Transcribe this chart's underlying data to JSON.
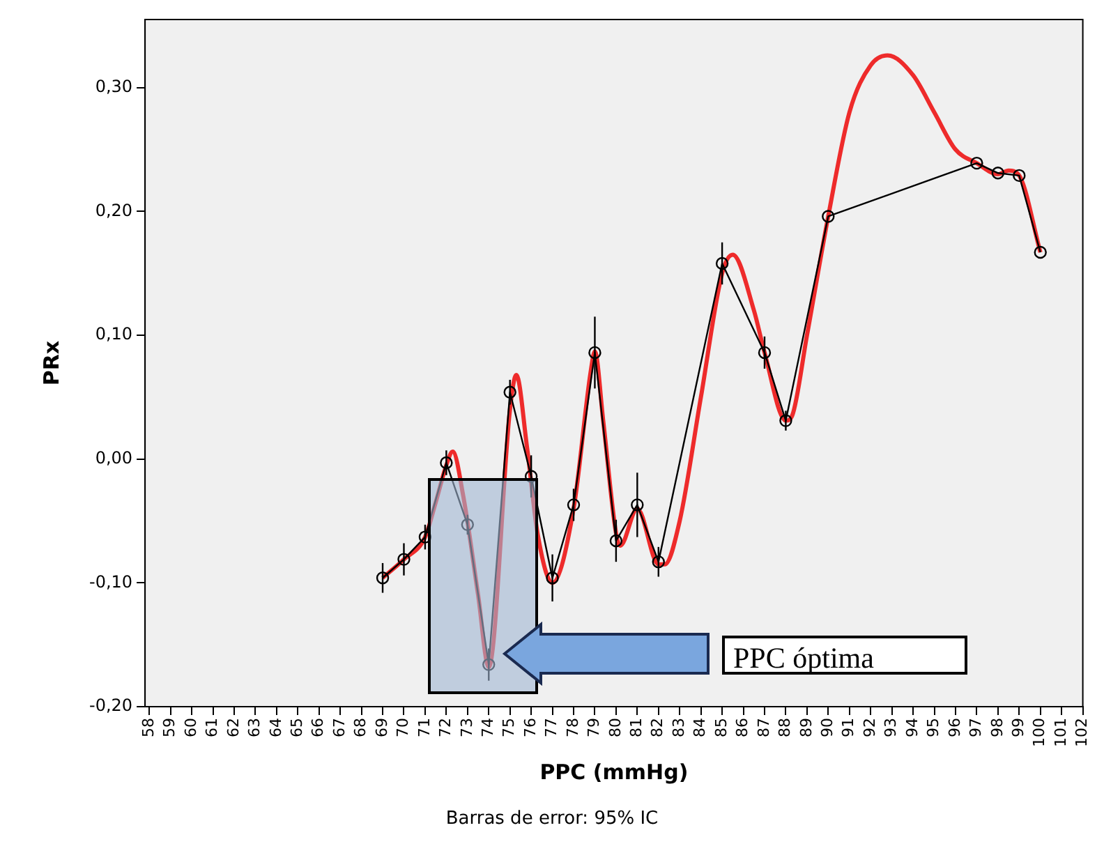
{
  "chart_data": {
    "type": "line",
    "xlabel": "PPC (mmHg)",
    "ylabel": "PRx",
    "annotations": [
      "PPC óptima",
      "Barras de error: 95% IC"
    ],
    "xlim": [
      57.8,
      102
    ],
    "xticks": [
      58,
      59,
      60,
      61,
      62,
      63,
      64,
      65,
      66,
      67,
      68,
      69,
      70,
      71,
      72,
      73,
      74,
      75,
      76,
      77,
      78,
      79,
      80,
      81,
      82,
      83,
      84,
      85,
      86,
      87,
      88,
      89,
      90,
      91,
      92,
      93,
      94,
      95,
      96,
      97,
      98,
      99,
      100,
      101,
      102
    ],
    "ylim": [
      -0.2,
      0.355
    ],
    "yticks": [
      {
        "value": -0.2,
        "label": "-0,20"
      },
      {
        "value": -0.1,
        "label": "-0,10"
      },
      {
        "value": 0,
        "label": "0,00"
      },
      {
        "value": 0.1,
        "label": "0,10"
      },
      {
        "value": 0.2,
        "label": "0,20"
      },
      {
        "value": 0.3,
        "label": "0,30"
      }
    ],
    "grid": false,
    "legend": false,
    "series": [
      {
        "color": "#ee2b2b",
        "marker": "none",
        "x": [
          69,
          70,
          71,
          71.5,
          72,
          72.3,
          72.8,
          73.5,
          74,
          75,
          75.3,
          75.8,
          76.3,
          77,
          78,
          78.8,
          79,
          79.4,
          80,
          80.2,
          81,
          82,
          82.3,
          83,
          84,
          85,
          85.5,
          86.5,
          87,
          88,
          88.3,
          89,
          90,
          91,
          92,
          92.8,
          94,
          95,
          96,
          97,
          98,
          98.5,
          99,
          100
        ],
        "values": [
          -0.096,
          -0.081,
          -0.063,
          -0.035,
          -0.005,
          0.006,
          -0.03,
          -0.11,
          -0.168,
          0.04,
          0.068,
          0.01,
          -0.06,
          -0.1,
          -0.04,
          0.07,
          0.087,
          0.03,
          -0.06,
          -0.07,
          -0.04,
          -0.085,
          -0.085,
          -0.05,
          0.05,
          0.15,
          0.165,
          0.12,
          0.086,
          0.031,
          0.035,
          0.1,
          0.196,
          0.28,
          0.318,
          0.326,
          0.31,
          0.28,
          0.25,
          0.239,
          0.23,
          0.233,
          0.229,
          0.167
        ]
      },
      {
        "color": "#000000",
        "marker": "circle",
        "x": [
          69,
          70,
          71,
          72,
          73,
          74,
          75,
          76,
          77,
          78,
          79,
          80,
          81,
          82,
          85,
          87,
          88,
          90,
          97,
          98,
          99,
          100
        ],
        "values": [
          -0.096,
          -0.081,
          -0.063,
          -0.003,
          -0.053,
          -0.166,
          0.054,
          -0.014,
          -0.096,
          -0.037,
          0.086,
          -0.066,
          -0.037,
          -0.083,
          0.158,
          0.086,
          0.031,
          0.196,
          0.239,
          0.231,
          0.229,
          0.167
        ],
        "errors": [
          0.012,
          0.013,
          0.01,
          0.01,
          0.008,
          0.013,
          0.01,
          0.017,
          0.019,
          0.013,
          0.029,
          0.017,
          0.026,
          0.012,
          0.017,
          0.013,
          0.008,
          null,
          null,
          null,
          null,
          null
        ]
      }
    ]
  }
}
